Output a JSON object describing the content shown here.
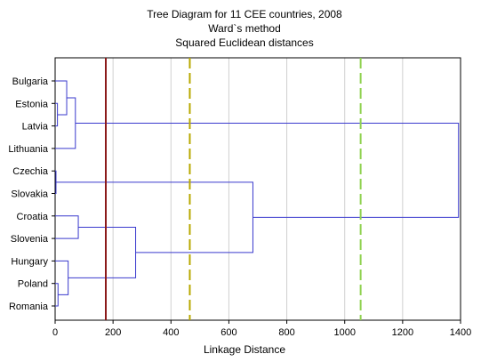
{
  "chart_data": {
    "type": "dendrogram",
    "title": "Tree Diagram for 11 CEE countries, 2008",
    "subtitle_lines": [
      "Ward`s method",
      "Squared Euclidean distances"
    ],
    "xlabel": "Linkage Distance",
    "xlim": [
      0,
      1400
    ],
    "xticks": [
      0,
      200,
      400,
      600,
      800,
      1000,
      1200,
      1400
    ],
    "grid": true,
    "leaves": [
      "Bulgaria",
      "Estonia",
      "Latvia",
      "Lithuania",
      "Czechia",
      "Slovakia",
      "Croatia",
      "Slovenia",
      "Hungary",
      "Poland",
      "Romania"
    ],
    "merges": [
      {
        "a": "Estonia",
        "b": "Latvia",
        "id": "c1",
        "height": 8
      },
      {
        "a": "Czechia",
        "b": "Slovakia",
        "id": "c2",
        "height": 3
      },
      {
        "a": "Poland",
        "b": "Romania",
        "id": "c3",
        "height": 10
      },
      {
        "a": "Bulgaria",
        "b": "c1",
        "id": "c4",
        "height": 40
      },
      {
        "a": "c4",
        "b": "Lithuania",
        "id": "c5",
        "height": 70
      },
      {
        "a": "Croatia",
        "b": "Slovenia",
        "id": "c6",
        "height": 80
      },
      {
        "a": "Hungary",
        "b": "c3",
        "id": "c7",
        "height": 45
      },
      {
        "a": "c6",
        "b": "c7",
        "id": "c8",
        "height": 278
      },
      {
        "a": "c2",
        "b": "c8",
        "id": "c9",
        "height": 683
      },
      {
        "a": "c5",
        "b": "c9",
        "id": "c10",
        "height": 1393
      }
    ],
    "cut_lines": [
      {
        "value": 175,
        "style": "solid",
        "color": "#8b1a1a"
      },
      {
        "value": 465,
        "style": "dashed",
        "color": "#b8a800"
      },
      {
        "value": 1055,
        "style": "dashed",
        "color": "#8fd14f"
      }
    ],
    "colors": {
      "branches": "#3a3acd",
      "grid": "#d0d0d0",
      "axis": "#000000"
    }
  }
}
